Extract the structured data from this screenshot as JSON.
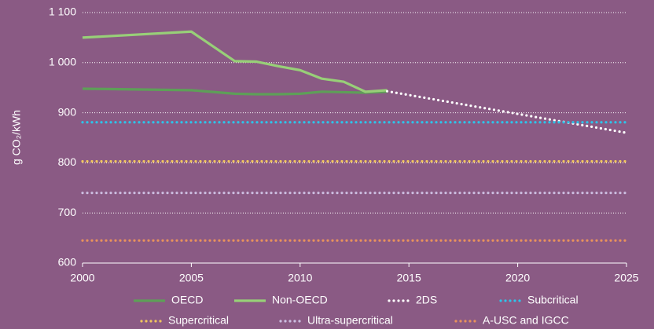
{
  "chart_data": {
    "type": "line",
    "ylabel": "g CO₂/kWh",
    "xlim": [
      2000,
      2025
    ],
    "xticks": [
      2000,
      2005,
      2010,
      2015,
      2020,
      2025
    ],
    "ylim": [
      600,
      1100
    ],
    "yticks": [
      600,
      700,
      800,
      900,
      {
        "value": 1000,
        "label": "1 000"
      },
      {
        "value": 1100,
        "label": "1 100"
      }
    ],
    "grid": true,
    "legend": "bottom",
    "series": [
      {
        "name": "OECD",
        "color": "#5e9f58",
        "style": "solid",
        "x": [
          2000,
          2005,
          2007,
          2008,
          2009,
          2010,
          2011,
          2012,
          2013,
          2014
        ],
        "values": [
          948,
          945,
          938,
          937,
          937,
          938,
          942,
          941,
          940,
          942
        ]
      },
      {
        "name": "Non-OECD",
        "color": "#98cf78",
        "style": "solid",
        "x": [
          2000,
          2005,
          2007,
          2008,
          2009,
          2010,
          2011,
          2012,
          2013,
          2014
        ],
        "values": [
          1050,
          1062,
          1003,
          1002,
          993,
          985,
          968,
          962,
          942,
          945
        ]
      },
      {
        "name": "2DS",
        "color": "#ffffff",
        "style": "dotted",
        "x": [
          2014,
          2025
        ],
        "values": [
          943,
          860
        ]
      },
      {
        "name": "Subcritical",
        "color": "#2ec4ea",
        "style": "dotted",
        "x": [
          2000,
          2025
        ],
        "values": [
          881,
          881
        ]
      },
      {
        "name": "Supercritical",
        "color": "#f1c65e",
        "style": "dotted",
        "x": [
          2000,
          2025
        ],
        "values": [
          803,
          803
        ]
      },
      {
        "name": "Ultra-supercritical",
        "color": "#cdbfe2",
        "style": "dotted",
        "x": [
          2000,
          2025
        ],
        "values": [
          740,
          740
        ]
      },
      {
        "name": "A-USC and IGCC",
        "color": "#e9925c",
        "style": "dotted",
        "x": [
          2000,
          2025
        ],
        "values": [
          645,
          645
        ]
      }
    ]
  }
}
